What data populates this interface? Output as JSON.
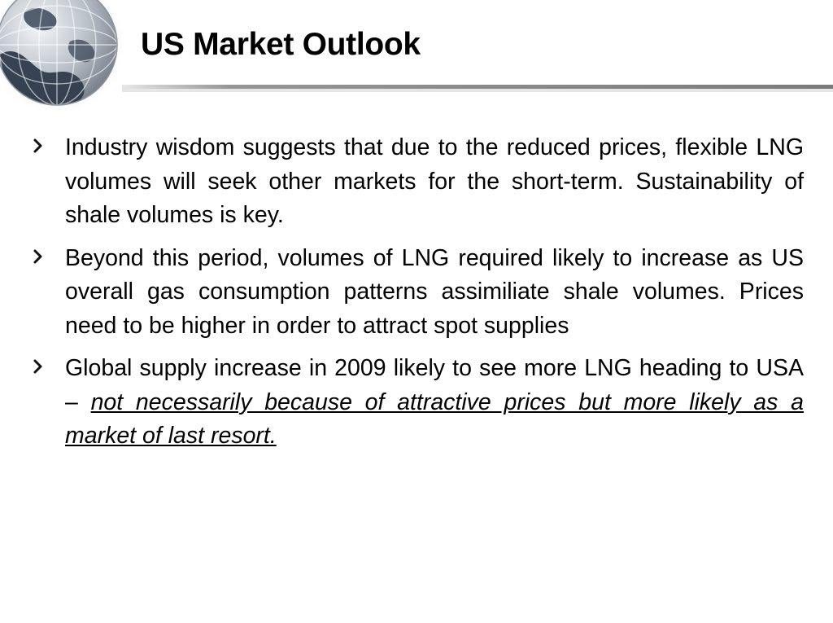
{
  "slide": {
    "title": "US Market Outlook",
    "bullets": [
      {
        "text": "Industry wisdom suggests that due to the reduced prices, flexible LNG volumes will seek other markets for the short-term.  Sustainability of shale volumes is key."
      },
      {
        "text": "Beyond this period, volumes of LNG required likely to increase as US overall gas consumption patterns assimiliate shale volumes.  Prices need to be higher in order to attract spot supplies"
      },
      {
        "text": "Global supply increase in 2009 likely to see more LNG heading to USA – ",
        "emphasis": "not necessarily because of attractive prices but more likely as a market of last resort."
      }
    ]
  },
  "decor": {
    "globe_icon": "globe-icon",
    "bullet_icon": "chevron-right-icon",
    "colors": {
      "title_text": "#000000",
      "rule": "#8a8a8a",
      "globe_ocean": "#9ea6b0",
      "globe_land": "#2f3b4c"
    }
  }
}
